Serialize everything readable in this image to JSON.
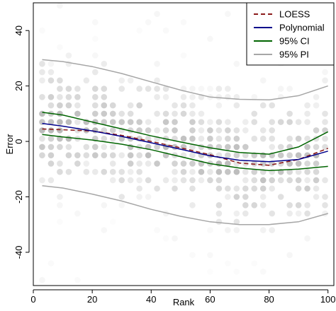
{
  "chart_data": {
    "type": "scatter",
    "xlabel": "Rank",
    "ylabel": "Error",
    "xlim": [
      0,
      102
    ],
    "ylim": [
      -52,
      50
    ],
    "x_ticks": [
      0,
      20,
      40,
      60,
      80,
      100
    ],
    "y_ticks": [
      -40,
      -20,
      0,
      20,
      40
    ],
    "x_tick_labels": [
      "0",
      "20",
      "40",
      "60",
      "80",
      "100"
    ],
    "y_tick_labels": [
      "-40",
      "-20",
      "0",
      "20",
      "40"
    ],
    "grid": false,
    "legend_position": "top-right",
    "legend": [
      {
        "label": "LOESS",
        "color": "#8b1a1a",
        "style": "dashed"
      },
      {
        "label": "Polynomial",
        "color": "#00008b",
        "style": "solid"
      },
      {
        "label": "95% CI",
        "color": "#006400",
        "style": "solid"
      },
      {
        "label": "95% PI",
        "color": "#a6a6a6",
        "style": "solid"
      }
    ],
    "series": [
      {
        "name": "LOESS",
        "color": "#8b1a1a",
        "style": "dashed",
        "x": [
          3,
          10,
          20,
          30,
          40,
          50,
          60,
          70,
          80,
          90,
          100
        ],
        "y": [
          4.5,
          4.2,
          3.8,
          2.2,
          0,
          -2.3,
          -4.8,
          -7.8,
          -8.6,
          -6.5,
          -2.5
        ]
      },
      {
        "name": "Polynomial",
        "color": "#00008b",
        "style": "solid",
        "x": [
          3,
          10,
          20,
          30,
          40,
          50,
          60,
          70,
          80,
          90,
          100
        ],
        "y": [
          6.5,
          5.5,
          3.8,
          1.8,
          -0.5,
          -2.8,
          -5.2,
          -6.8,
          -7.3,
          -6.5,
          -3.5
        ]
      },
      {
        "name": "95% CI upper",
        "color": "#006400",
        "style": "solid",
        "x": [
          3,
          10,
          20,
          30,
          40,
          50,
          60,
          70,
          80,
          90,
          100
        ],
        "y": [
          10.5,
          9.5,
          7,
          4.5,
          2,
          -0.2,
          -2.3,
          -4,
          -4.6,
          -2,
          3.5
        ]
      },
      {
        "name": "95% CI lower",
        "color": "#006400",
        "style": "solid",
        "x": [
          3,
          10,
          20,
          30,
          40,
          50,
          60,
          70,
          80,
          90,
          100
        ],
        "y": [
          2.5,
          1.6,
          0.5,
          -1,
          -3,
          -5.5,
          -8,
          -9.6,
          -10.5,
          -10,
          -9
        ]
      },
      {
        "name": "95% PI upper",
        "color": "#a6a6a6",
        "style": "solid",
        "x": [
          3,
          10,
          20,
          30,
          40,
          50,
          60,
          70,
          80,
          90,
          100
        ],
        "y": [
          29.5,
          28.8,
          27,
          24.5,
          21.5,
          18.5,
          16,
          15.2,
          15,
          16.5,
          20
        ]
      },
      {
        "name": "95% PI lower",
        "color": "#a6a6a6",
        "style": "solid",
        "x": [
          3,
          10,
          20,
          30,
          40,
          50,
          60,
          70,
          80,
          90,
          100
        ],
        "y": [
          -16,
          -16.8,
          -19,
          -21.5,
          -24.5,
          -27,
          -29,
          -30,
          -30,
          -29,
          -26
        ]
      }
    ],
    "points": {
      "color": "#808080",
      "x_range": [
        3,
        100
      ],
      "x_step": 3,
      "y_step": 3,
      "y_range": [
        -50,
        50
      ]
    }
  }
}
